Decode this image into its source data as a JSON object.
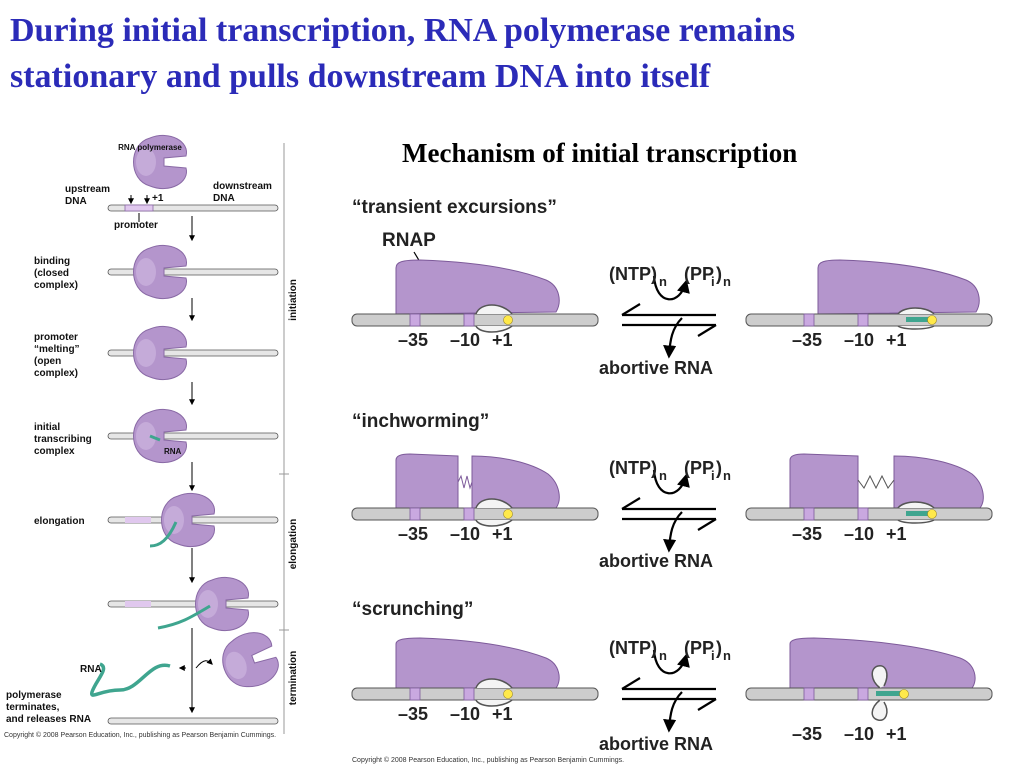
{
  "title_line1": "During initial transcription, RNA polymerase remains",
  "title_line2": "stationary and pulls downstream DNA into itself",
  "right_title": "Mechanism of initial transcription",
  "colors": {
    "title": "#2b2bb8",
    "polymerase": "#b495cc",
    "dna": "#cdcdcd",
    "rna": "#3fa58f",
    "active_site": "#ffe94a"
  },
  "left_figure": {
    "rna_polymerase": "RNA polymerase",
    "upstream_dna": [
      "upstream",
      "DNA"
    ],
    "downstream_dna": [
      "downstream",
      "DNA"
    ],
    "plus_one": "+1",
    "promoter": "promoter",
    "binding": [
      "binding",
      "(closed",
      "complex)"
    ],
    "melting": [
      "promoter",
      "“melting”",
      "(open",
      "complex)"
    ],
    "initial": [
      "initial",
      "transcribing",
      "complex"
    ],
    "rna_small": "RNA",
    "elongation": "elongation",
    "rna": "RNA",
    "terminates": [
      "polymerase",
      "terminates,",
      "and releases RNA"
    ],
    "phase_initiation": "initiation",
    "phase_elongation": "elongation",
    "phase_termination": "termination",
    "copyright": "Copyright © 2008 Pearson Education, Inc., publishing as Pearson Benjamin Cummings."
  },
  "right_figure": {
    "model_transient": "“transient excursions”",
    "model_inchworming": "“inchworming”",
    "model_scrunching": "“scrunching”",
    "rnap": "RNAP",
    "ntp": "(NTP)",
    "ppi": "(PP",
    "sub_n": "n",
    "sub_i": "i",
    "abortive": "abortive RNA",
    "m35": "–35",
    "m10": "–10",
    "p1": "+1",
    "copyright": "Copyright © 2008 Pearson Education, Inc., publishing as Pearson Benjamin Cummings."
  }
}
